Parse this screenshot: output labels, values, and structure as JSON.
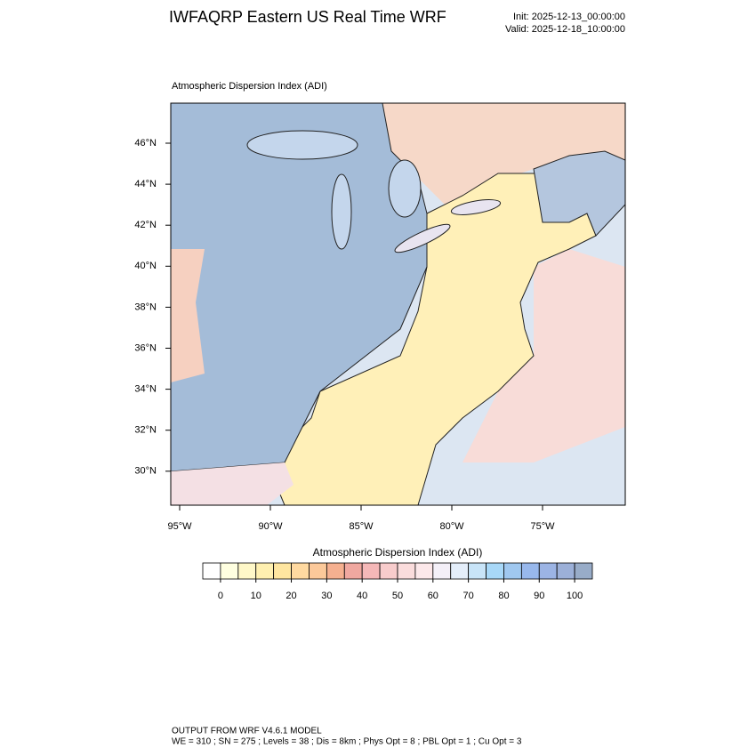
{
  "header": {
    "title": "IWFAQRP Eastern US Real Time WRF",
    "init": "Init: 2025-12-13_00:00:00",
    "valid": "Valid: 2025-12-18_10:00:00"
  },
  "map": {
    "subtitle": "Atmospheric Dispersion Index   (ADI)",
    "lat_labels": [
      "46°N",
      "44°N",
      "42°N",
      "40°N",
      "38°N",
      "36°N",
      "34°N",
      "32°N",
      "30°N"
    ],
    "lon_labels": [
      "95°W",
      "90°W",
      "85°W",
      "80°W",
      "75°W"
    ]
  },
  "colorbar": {
    "title": "Atmospheric Dispersion Index  (ADI)",
    "ticks": [
      0,
      10,
      20,
      30,
      40,
      50,
      60,
      70,
      80,
      90,
      100
    ],
    "colors": [
      "#ffffff",
      "#ffffe0",
      "#fff8c8",
      "#fff0b0",
      "#ffe6a0",
      "#ffd9a0",
      "#fcc99a",
      "#f5b090",
      "#f0a8a0",
      "#f5b8b8",
      "#f8cccc",
      "#fadcdc",
      "#fce8ea",
      "#f4f0f8",
      "#e4eefa",
      "#c8e4f8",
      "#a8d8f8",
      "#a0c8f0",
      "#98b8ec",
      "#9cb4e4",
      "#9cb0d8",
      "#98acc8"
    ]
  },
  "footer": {
    "line1": "OUTPUT FROM WRF V4.6.1 MODEL",
    "line2": "WE = 310 ; SN = 275 ; Levels = 38 ; Dis = 8km ; Phys Opt = 8 ; PBL Opt = 1 ; Cu Opt = 3"
  }
}
